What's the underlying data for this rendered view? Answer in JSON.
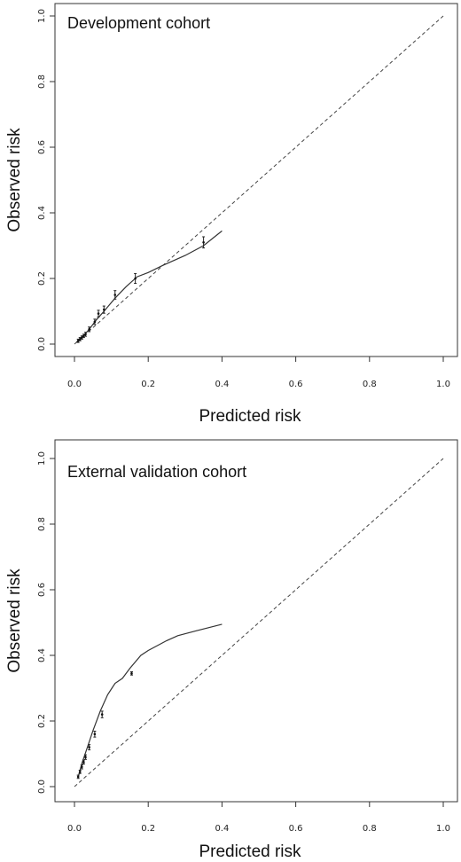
{
  "chart_data": [
    {
      "type": "line",
      "panel_label": "Development cohort",
      "xlabel": "Predicted risk",
      "ylabel": "Observed risk",
      "xlim": [
        0,
        1
      ],
      "ylim": [
        0,
        1
      ],
      "x_ticks": [
        "0.0",
        "0.2",
        "0.4",
        "0.6",
        "0.8",
        "1.0"
      ],
      "y_ticks": [
        "0.0",
        "0.2",
        "0.4",
        "0.6",
        "0.8",
        "1.0"
      ],
      "reference_line": {
        "style": "dashed",
        "x": [
          0,
          1
        ],
        "y": [
          0,
          1
        ]
      },
      "series": [
        {
          "style": "solid",
          "x": [
            0.005,
            0.02,
            0.04,
            0.06,
            0.08,
            0.11,
            0.14,
            0.17,
            0.2,
            0.24,
            0.3,
            0.35,
            0.4
          ],
          "y": [
            0.005,
            0.02,
            0.045,
            0.075,
            0.1,
            0.14,
            0.175,
            0.205,
            0.218,
            0.24,
            0.27,
            0.3,
            0.345
          ]
        }
      ],
      "error_bars": [
        {
          "x": 0.01,
          "y": 0.01,
          "low": 0.005,
          "high": 0.015
        },
        {
          "x": 0.015,
          "y": 0.015,
          "low": 0.01,
          "high": 0.02
        },
        {
          "x": 0.02,
          "y": 0.02,
          "low": 0.015,
          "high": 0.025
        },
        {
          "x": 0.025,
          "y": 0.025,
          "low": 0.02,
          "high": 0.03
        },
        {
          "x": 0.03,
          "y": 0.03,
          "low": 0.024,
          "high": 0.036
        },
        {
          "x": 0.04,
          "y": 0.045,
          "low": 0.038,
          "high": 0.052
        },
        {
          "x": 0.055,
          "y": 0.068,
          "low": 0.06,
          "high": 0.076
        },
        {
          "x": 0.065,
          "y": 0.093,
          "low": 0.083,
          "high": 0.103
        },
        {
          "x": 0.08,
          "y": 0.105,
          "low": 0.094,
          "high": 0.116
        },
        {
          "x": 0.11,
          "y": 0.15,
          "low": 0.137,
          "high": 0.163
        },
        {
          "x": 0.165,
          "y": 0.2,
          "low": 0.185,
          "high": 0.215
        },
        {
          "x": 0.35,
          "y": 0.31,
          "low": 0.293,
          "high": 0.327
        }
      ]
    },
    {
      "type": "line",
      "panel_label": "External validation cohort",
      "xlabel": "Predicted risk",
      "ylabel": "Observed risk",
      "xlim": [
        0,
        1
      ],
      "ylim": [
        0,
        1
      ],
      "x_ticks": [
        "0.0",
        "0.2",
        "0.4",
        "0.6",
        "0.8",
        "1.0"
      ],
      "y_ticks": [
        "0.0",
        "0.2",
        "0.4",
        "0.6",
        "0.8",
        "1.0"
      ],
      "reference_line": {
        "style": "dashed",
        "x": [
          0,
          1
        ],
        "y": [
          0,
          1
        ]
      },
      "series": [
        {
          "style": "solid",
          "x": [
            0.01,
            0.02,
            0.035,
            0.05,
            0.07,
            0.09,
            0.11,
            0.13,
            0.15,
            0.18,
            0.2,
            0.25,
            0.28,
            0.33,
            0.4
          ],
          "y": [
            0.03,
            0.07,
            0.12,
            0.17,
            0.23,
            0.28,
            0.315,
            0.33,
            0.36,
            0.4,
            0.415,
            0.445,
            0.46,
            0.475,
            0.495
          ]
        }
      ],
      "error_bars": [
        {
          "x": 0.01,
          "y": 0.03,
          "low": 0.025,
          "high": 0.035
        },
        {
          "x": 0.015,
          "y": 0.045,
          "low": 0.04,
          "high": 0.05
        },
        {
          "x": 0.02,
          "y": 0.06,
          "low": 0.054,
          "high": 0.066
        },
        {
          "x": 0.025,
          "y": 0.075,
          "low": 0.069,
          "high": 0.081
        },
        {
          "x": 0.03,
          "y": 0.09,
          "low": 0.083,
          "high": 0.097
        },
        {
          "x": 0.04,
          "y": 0.12,
          "low": 0.112,
          "high": 0.128
        },
        {
          "x": 0.055,
          "y": 0.16,
          "low": 0.151,
          "high": 0.169
        },
        {
          "x": 0.075,
          "y": 0.22,
          "low": 0.21,
          "high": 0.23
        },
        {
          "x": 0.155,
          "y": 0.345,
          "low": 0.34,
          "high": 0.35
        }
      ]
    }
  ]
}
